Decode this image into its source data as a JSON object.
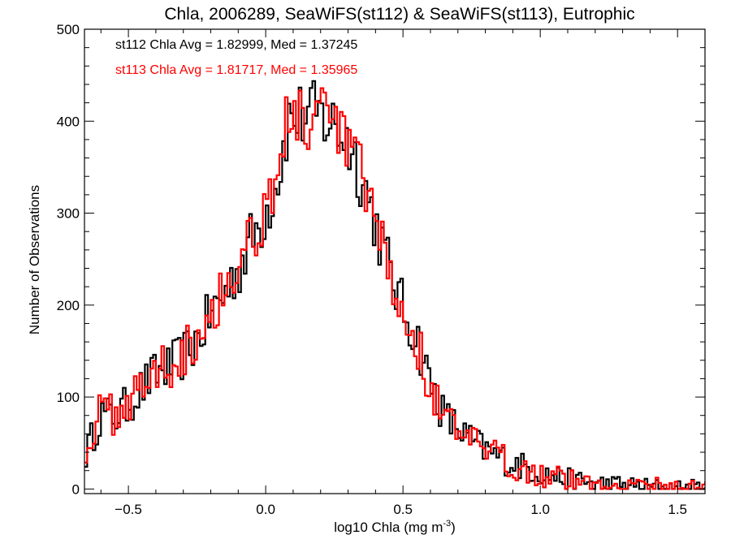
{
  "chart_data": {
    "type": "histogram",
    "title": "Chla, 2006289, SeaWiFS(st112) & SeaWiFS(st113), Eutrophic",
    "xlabel": "log10 Chla (mg m",
    "xlabel_sup": "-3",
    "xlabel_close": ")",
    "ylabel": "Number of Observations",
    "xlim": [
      -0.66,
      1.6
    ],
    "ylim": [
      -5,
      500
    ],
    "x_ticks": [
      -0.5,
      0.0,
      0.5,
      1.0,
      1.5
    ],
    "x_tick_labels": [
      "−0.5",
      "0.0",
      "0.5",
      "1.0",
      "1.5"
    ],
    "y_ticks": [
      0,
      100,
      200,
      300,
      400,
      500
    ],
    "y_tick_labels": [
      "0",
      "100",
      "200",
      "300",
      "400",
      "500"
    ],
    "bin_width": 0.01,
    "annotations": [
      {
        "text": "st112 Chla Avg = 1.82999, Med = 1.37245",
        "color": "#000000"
      },
      {
        "text": "st113 Chla Avg = 1.81717, Med = 1.35965",
        "color": "#ff0000"
      }
    ],
    "series": [
      {
        "name": "st112",
        "color": "#000000",
        "profile": [
          [
            -0.66,
            35
          ],
          [
            -0.62,
            65
          ],
          [
            -0.6,
            82
          ],
          [
            -0.55,
            78
          ],
          [
            -0.5,
            92
          ],
          [
            -0.45,
            110
          ],
          [
            -0.4,
            125
          ],
          [
            -0.35,
            132
          ],
          [
            -0.3,
            145
          ],
          [
            -0.25,
            162
          ],
          [
            -0.2,
            190
          ],
          [
            -0.15,
            212
          ],
          [
            -0.1,
            240
          ],
          [
            -0.05,
            272
          ],
          [
            0.0,
            300
          ],
          [
            0.05,
            345
          ],
          [
            0.08,
            400
          ],
          [
            0.12,
            405
          ],
          [
            0.2,
            405
          ],
          [
            0.25,
            395
          ],
          [
            0.3,
            380
          ],
          [
            0.35,
            340
          ],
          [
            0.4,
            290
          ],
          [
            0.45,
            240
          ],
          [
            0.5,
            195
          ],
          [
            0.55,
            165
          ],
          [
            0.6,
            115
          ],
          [
            0.65,
            80
          ],
          [
            0.7,
            65
          ],
          [
            0.75,
            52
          ],
          [
            0.8,
            42
          ],
          [
            0.9,
            28
          ],
          [
            1.0,
            18
          ],
          [
            1.1,
            10
          ],
          [
            1.2,
            6
          ],
          [
            1.3,
            4
          ],
          [
            1.4,
            2
          ],
          [
            1.5,
            1
          ],
          [
            1.6,
            1
          ]
        ]
      },
      {
        "name": "st113",
        "color": "#ff0000",
        "profile": [
          [
            -0.66,
            40
          ],
          [
            -0.62,
            68
          ],
          [
            -0.6,
            85
          ],
          [
            -0.55,
            80
          ],
          [
            -0.5,
            95
          ],
          [
            -0.45,
            115
          ],
          [
            -0.4,
            128
          ],
          [
            -0.35,
            136
          ],
          [
            -0.3,
            150
          ],
          [
            -0.25,
            168
          ],
          [
            -0.2,
            195
          ],
          [
            -0.15,
            218
          ],
          [
            -0.1,
            246
          ],
          [
            -0.05,
            278
          ],
          [
            0.0,
            305
          ],
          [
            0.05,
            352
          ],
          [
            0.08,
            405
          ],
          [
            0.12,
            402
          ],
          [
            0.2,
            398
          ],
          [
            0.25,
            392
          ],
          [
            0.3,
            376
          ],
          [
            0.35,
            336
          ],
          [
            0.4,
            286
          ],
          [
            0.45,
            236
          ],
          [
            0.5,
            190
          ],
          [
            0.55,
            160
          ],
          [
            0.6,
            110
          ],
          [
            0.65,
            78
          ],
          [
            0.7,
            62
          ],
          [
            0.75,
            50
          ],
          [
            0.8,
            40
          ],
          [
            0.9,
            27
          ],
          [
            1.0,
            17
          ],
          [
            1.1,
            10
          ],
          [
            1.2,
            6
          ],
          [
            1.3,
            4
          ],
          [
            1.4,
            3
          ],
          [
            1.5,
            2
          ],
          [
            1.6,
            1
          ]
        ]
      }
    ]
  }
}
